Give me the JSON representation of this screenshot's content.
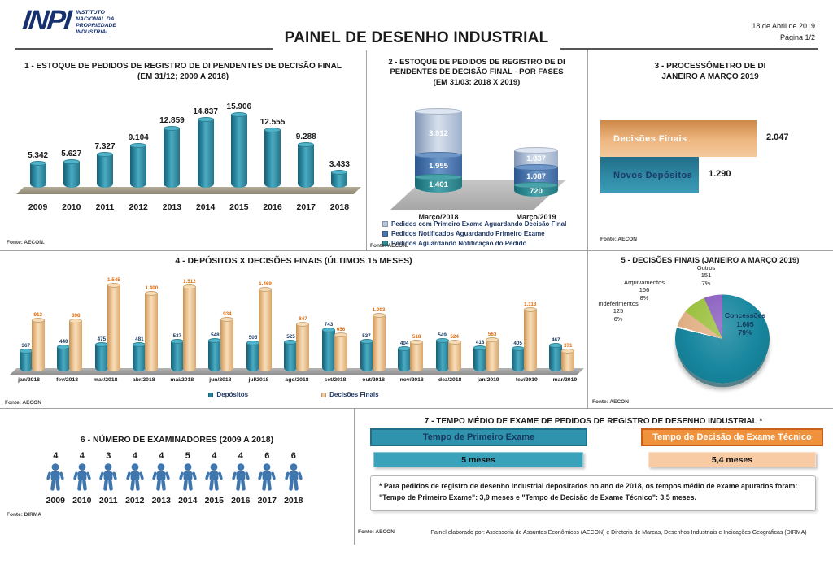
{
  "header": {
    "logo_acronym": "INPI",
    "logo_lines": [
      "INSTITUTO",
      "NACIONAL DA",
      "PROPRIEDADE",
      "INDUSTRIAL"
    ],
    "title": "PAINEL DE DESENHO INDUSTRIAL",
    "date": "18 de Abril de 2019",
    "page": "Página 1/2"
  },
  "chart_data": [
    {
      "type": "bar",
      "title": "1 - ESTOQUE DE PEDIDOS DE REGISTRO DE DI PENDENTES DE DECISÃO FINAL",
      "subtitle": "(EM 31/12; 2009 A 2018)",
      "categories": [
        "2009",
        "2010",
        "2011",
        "2012",
        "2013",
        "2014",
        "2015",
        "2016",
        "2017",
        "2018"
      ],
      "values": [
        5342,
        5627,
        7327,
        9104,
        12859,
        14837,
        15906,
        12555,
        9288,
        3433
      ],
      "labels": [
        "5.342",
        "5.627",
        "7.327",
        "9.104",
        "12.859",
        "14.837",
        "15.906",
        "12.555",
        "9.288",
        "3.433"
      ],
      "bar_color": "#2e8ba4",
      "ylim": [
        0,
        15906
      ],
      "fonte": "Fonte: AECON."
    },
    {
      "type": "stacked-bar",
      "title_l1": "2 - ESTOQUE DE PEDIDOS DE REGISTRO DE DI",
      "title_l2": "PENDENTES DE DECISÃO FINAL - POR FASES",
      "subtitle": "(EM 31/03: 2018 X 2019)",
      "categories": [
        "Março/2018",
        "Março/2019"
      ],
      "series": [
        {
          "name": "Pedidos com Primeiro Exame Aguardando Decisão Final",
          "color": "#b7c5da",
          "values": [
            3912,
            1037
          ],
          "labels": [
            "3.912",
            "1.037"
          ]
        },
        {
          "name": "Pedidos Notificados Aguardando Primeiro Exame",
          "color": "#4a77b0",
          "values": [
            1955,
            1087
          ],
          "labels": [
            "1.955",
            "1.087"
          ]
        },
        {
          "name": "Pedidos Aguardando Notificação do Pedido",
          "color": "#2f8d95",
          "values": [
            1401,
            720
          ],
          "labels": [
            "1.401",
            "720"
          ]
        }
      ],
      "fonte": "Fonte: AECON."
    },
    {
      "type": "bar-horizontal",
      "title_l1": "3 - PROCESSÔMETRO DE DI",
      "title_l2": "JANEIRO A MARÇO 2019",
      "bars": [
        {
          "label": "Decisões Finais",
          "value": 2047,
          "value_label": "2.047",
          "color": "#e39b5d"
        },
        {
          "label": "Novos Depósitos",
          "value": 1290,
          "value_label": "1.290",
          "color": "#2c7f99"
        }
      ],
      "fonte": "Fonte: AECON"
    },
    {
      "type": "bar-grouped",
      "title": "4 - DEPÓSITOS X DECISÕES FINAIS (ÚLTIMOS 15 MESES)",
      "categories": [
        "jan/2018",
        "fev/2018",
        "mar/2018",
        "abr/2018",
        "mai/2018",
        "jun/2018",
        "jul/2018",
        "ago/2018",
        "set/2018",
        "out/2018",
        "nov/2018",
        "dez/2018",
        "jan/2019",
        "fev/2019",
        "mar/2019"
      ],
      "series": [
        {
          "name": "Depósitos",
          "color": "#2c7f99",
          "values": [
            367,
            440,
            475,
            481,
            537,
            548,
            505,
            525,
            743,
            537,
            404,
            549,
            418,
            405,
            467
          ],
          "labels": [
            "367",
            "440",
            "475",
            "481",
            "537",
            "548",
            "505",
            "525",
            "743",
            "537",
            "404",
            "549",
            "418",
            "405",
            "467"
          ]
        },
        {
          "name": "Decisões Finais",
          "color": "#f2cb9c",
          "values": [
            913,
            898,
            1545,
            1400,
            1512,
            934,
            1469,
            847,
            656,
            1003,
            518,
            524,
            563,
            1113,
            371
          ],
          "labels": [
            "913",
            "898",
            "1.545",
            "1.400",
            "1.512",
            "934",
            "1.469",
            "847",
            "656",
            "1.003",
            "518",
            "524",
            "563",
            "1.113",
            "371"
          ]
        }
      ],
      "ylim": [
        0,
        1545
      ],
      "fonte": "Fonte: AECON"
    },
    {
      "type": "pie",
      "title": "5 - DECISÕES FINAIS (JANEIRO A MARÇO 2019)",
      "slices": [
        {
          "label": "Concessões",
          "value": 1605,
          "value_label": "1.605",
          "pct": "79%",
          "pct_num": 79,
          "color": "#17869e"
        },
        {
          "label": "Indeferimentos",
          "value": 125,
          "value_label": "125",
          "pct": "6%",
          "pct_num": 6,
          "color": "#e2b186"
        },
        {
          "label": "Arquivamentos",
          "value": 166,
          "value_label": "166",
          "pct": "8%",
          "pct_num": 8,
          "color": "#9cc13f"
        },
        {
          "label": "Outros",
          "value": 151,
          "value_label": "151",
          "pct": "7%",
          "pct_num": 7,
          "color": "#8a5fc0"
        }
      ],
      "fonte": "Fonte: AECON"
    },
    {
      "type": "pictogram",
      "title": "6 - NÚMERO DE EXAMINADORES (2009 A 2018)",
      "categories": [
        "2009",
        "2010",
        "2011",
        "2012",
        "2013",
        "2014",
        "2015",
        "2016",
        "2017",
        "2018"
      ],
      "values": [
        4,
        4,
        3,
        4,
        4,
        5,
        4,
        4,
        6,
        6
      ],
      "icon": "person-icon",
      "icon_color": "#3f76ad",
      "fonte": "Fonte: DIRMA"
    }
  ],
  "panel7": {
    "title": "7 - TEMPO MÉDIO DE EXAME DE PEDIDOS DE REGISTRO DE DESENHO INDUSTRIAL *",
    "items": [
      {
        "header": "Tempo de Primeiro Exame",
        "value": "5 meses",
        "header_color": "#2f93ad",
        "value_color": "#3aa2ba"
      },
      {
        "header": "Tempo de Decisão de Exame Técnico",
        "value": "5,4 meses",
        "header_color": "#f0913b",
        "value_color": "#f8cba4"
      }
    ],
    "footnote_l1": "* Para pedidos de registro de desenho industrial depositados no ano de 2018, os tempos médio de exame apurados foram:",
    "footnote_l2": "\"Tempo de Primeiro Exame\": 3,9 meses e \"Tempo de Decisão de Exame Técnico\": 3,5 meses.",
    "fonte": "Fonte: AECON",
    "footer": "Painel elaborado por: Assessoria de Assuntos Econômicos (AECON) e Diretoria de Marcas, Desenhos Industriais e Indicações Geográficas (DIRMA)"
  }
}
